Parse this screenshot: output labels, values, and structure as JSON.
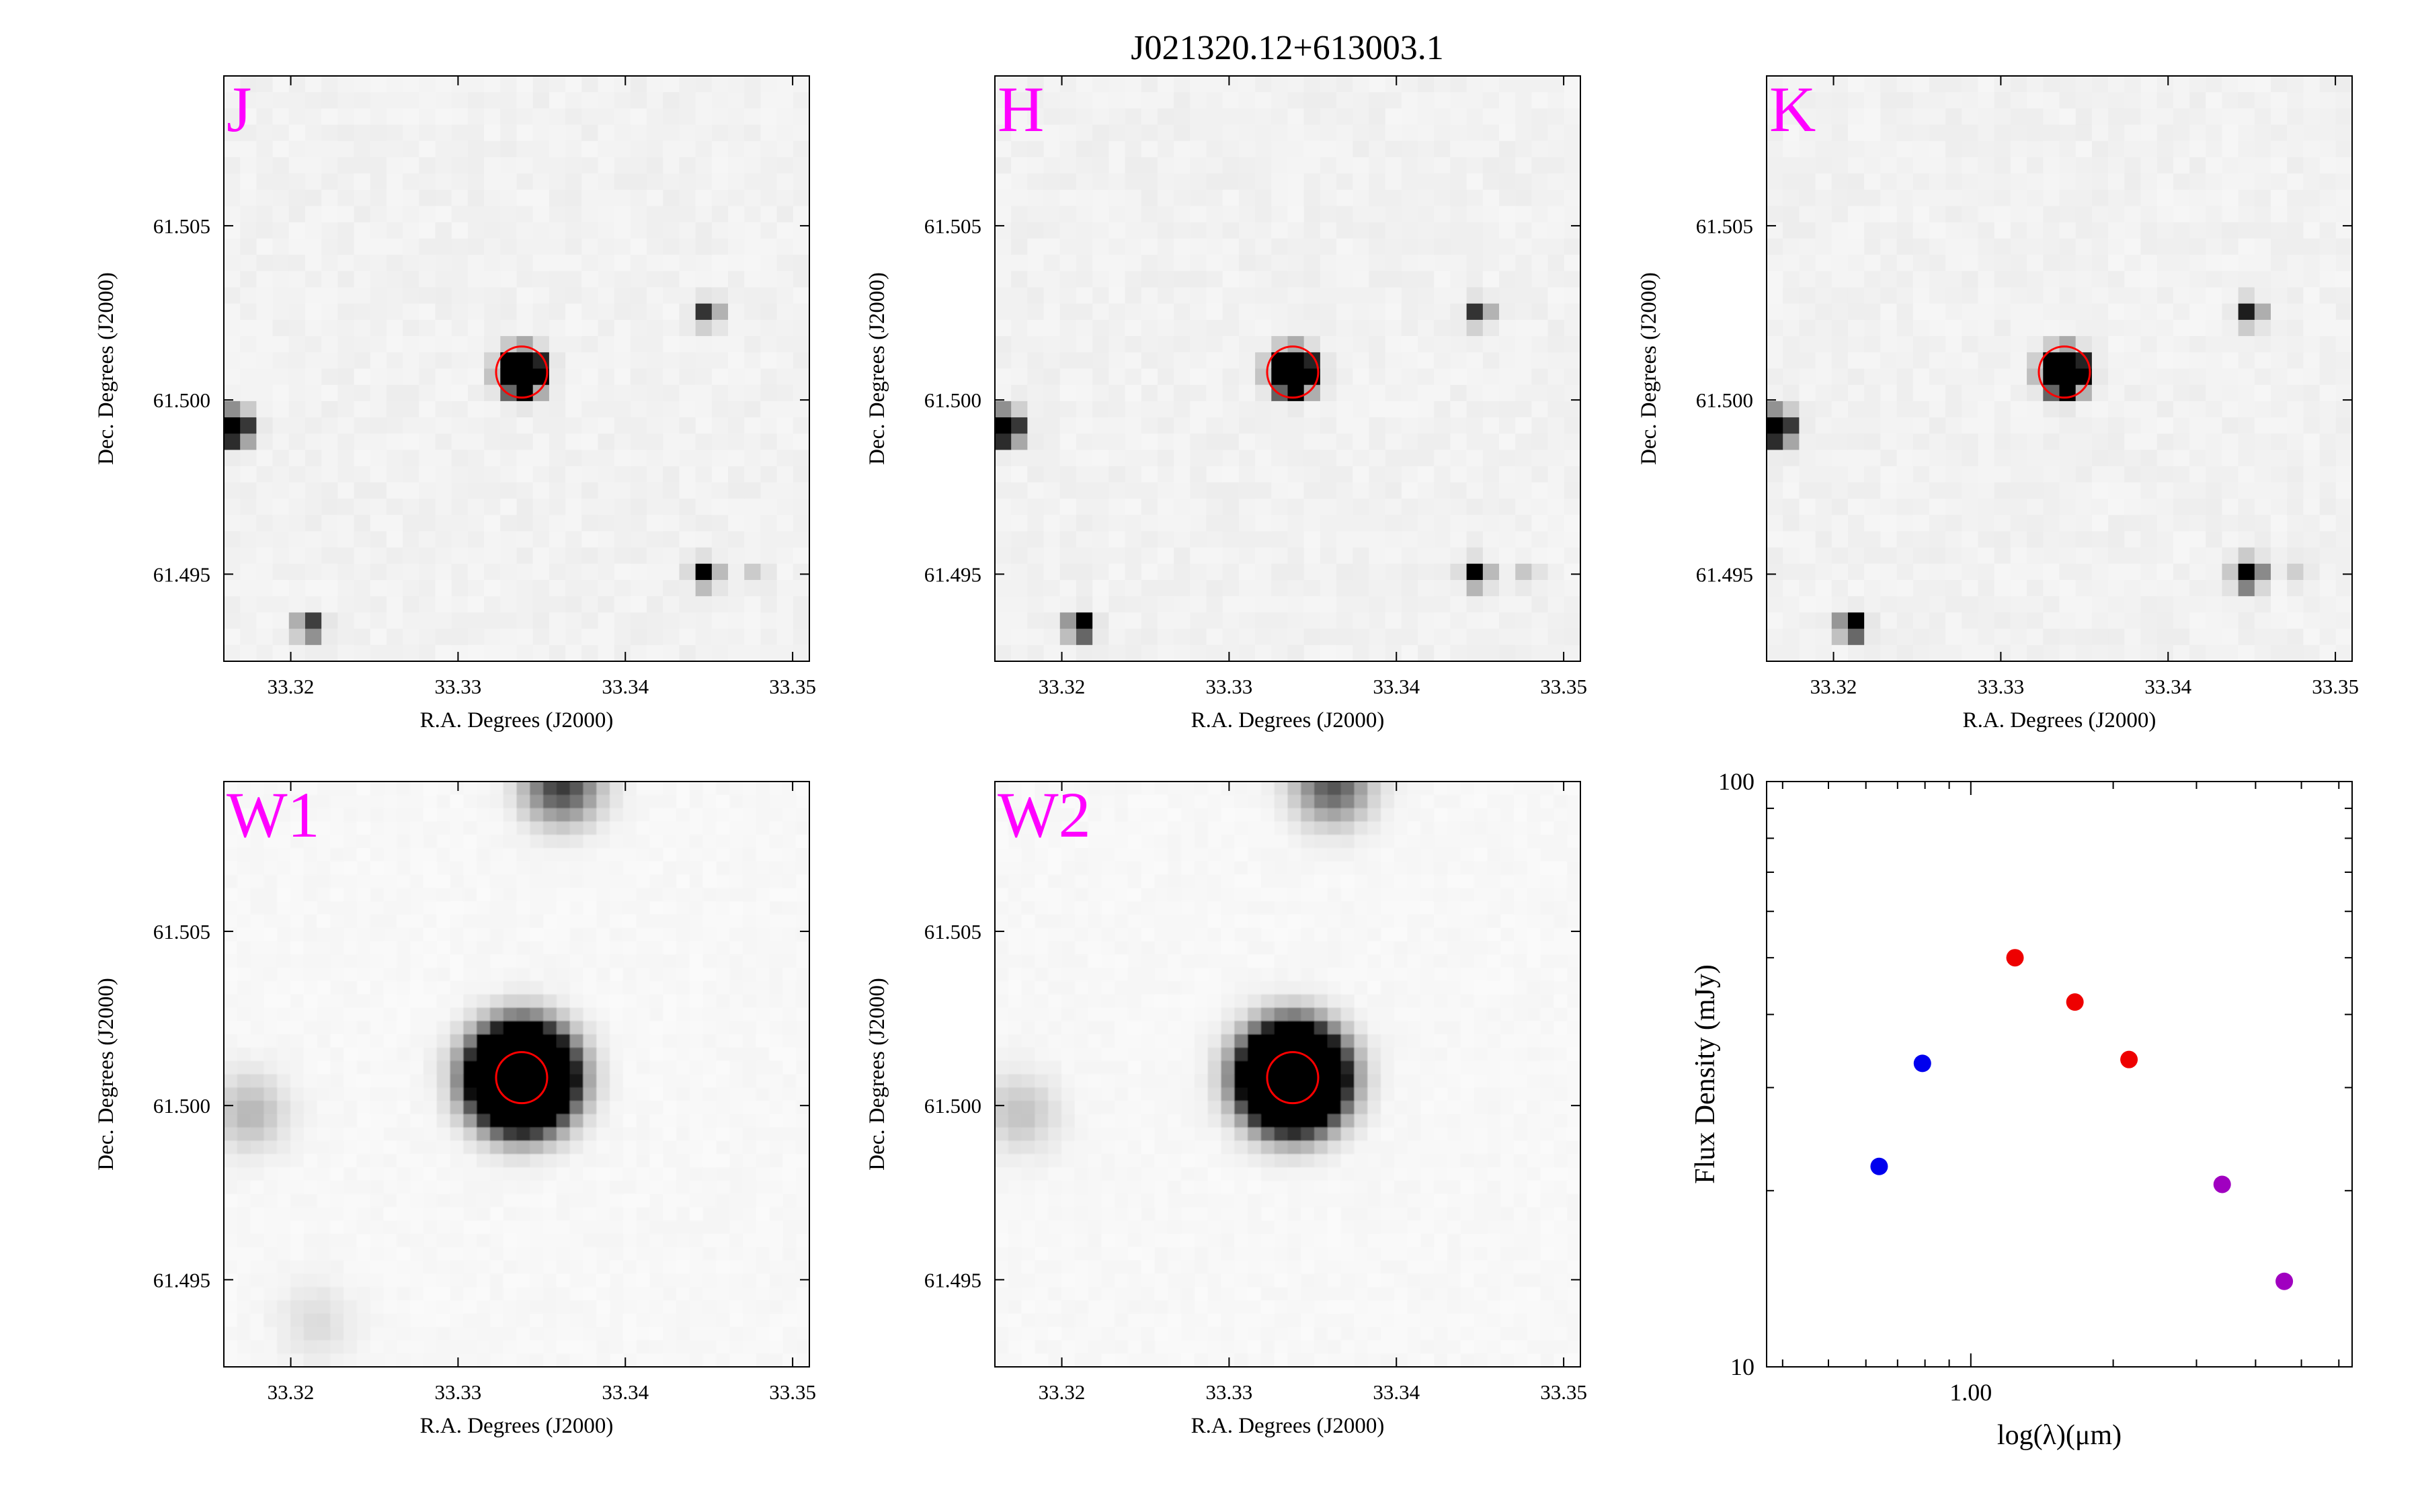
{
  "title": "J021320.12+613003.1",
  "image_panel": {
    "xlabel": "R.A. Degrees (J2000)",
    "ylabel": "Dec. Degrees (J2000)",
    "xlim": [
      33.316,
      33.351
    ],
    "ylim": [
      61.4925,
      61.5093
    ],
    "xticks": [
      "33.32",
      "33.33",
      "33.34",
      "33.35"
    ],
    "yticks": [
      "61.495",
      "61.500",
      "61.505"
    ],
    "target": {
      "ra": 33.3338,
      "dec": 61.5008
    },
    "marker_color": "#ff0000",
    "band_label_color": "#ff00ff"
  },
  "panels": [
    {
      "band": "J",
      "type": "2mass",
      "sources": [
        {
          "ra": 33.3338,
          "dec": 61.5008,
          "strength": 1.0,
          "size": 1.0
        },
        {
          "ra": 33.3166,
          "dec": 61.4992,
          "strength": 0.95,
          "size": 0.9
        },
        {
          "ra": 33.3449,
          "dec": 61.5025,
          "strength": 0.4,
          "size": 0.7
        },
        {
          "ra": 33.3448,
          "dec": 61.495,
          "strength": 0.5,
          "size": 0.7
        },
        {
          "ra": 33.3211,
          "dec": 61.4935,
          "strength": 0.5,
          "size": 0.7
        },
        {
          "ra": 33.3478,
          "dec": 61.495,
          "strength": 0.08,
          "size": 0.7
        }
      ]
    },
    {
      "band": "H",
      "type": "2mass",
      "sources": [
        {
          "ra": 33.3338,
          "dec": 61.5008,
          "strength": 1.0,
          "size": 1.0
        },
        {
          "ra": 33.3166,
          "dec": 61.4992,
          "strength": 0.95,
          "size": 0.9
        },
        {
          "ra": 33.3449,
          "dec": 61.5025,
          "strength": 0.4,
          "size": 0.7
        },
        {
          "ra": 33.3448,
          "dec": 61.495,
          "strength": 0.55,
          "size": 0.7
        },
        {
          "ra": 33.3211,
          "dec": 61.4935,
          "strength": 0.7,
          "size": 0.7
        },
        {
          "ra": 33.3478,
          "dec": 61.495,
          "strength": 0.1,
          "size": 0.7
        }
      ]
    },
    {
      "band": "K",
      "type": "2mass",
      "sources": [
        {
          "ra": 33.3338,
          "dec": 61.5008,
          "strength": 1.0,
          "size": 1.0
        },
        {
          "ra": 33.3166,
          "dec": 61.4992,
          "strength": 0.95,
          "size": 0.9
        },
        {
          "ra": 33.3449,
          "dec": 61.5025,
          "strength": 0.45,
          "size": 0.7
        },
        {
          "ra": 33.3448,
          "dec": 61.495,
          "strength": 0.8,
          "size": 0.75
        },
        {
          "ra": 33.3211,
          "dec": 61.4935,
          "strength": 0.7,
          "size": 0.7
        },
        {
          "ra": 33.3478,
          "dec": 61.495,
          "strength": 0.08,
          "size": 0.7
        }
      ]
    },
    {
      "band": "W1",
      "type": "wise",
      "sources": [
        {
          "ra": 33.3338,
          "dec": 61.5008,
          "strength": 1.0,
          "size": 1.0
        },
        {
          "ra": 33.3362,
          "dec": 61.5092,
          "strength": 0.35,
          "size": 0.9
        },
        {
          "ra": 33.3175,
          "dec": 61.4998,
          "strength": 0.12,
          "size": 0.9
        },
        {
          "ra": 33.3215,
          "dec": 61.4938,
          "strength": 0.05,
          "size": 0.9
        }
      ]
    },
    {
      "band": "W2",
      "type": "wise",
      "sources": [
        {
          "ra": 33.3338,
          "dec": 61.5008,
          "strength": 1.0,
          "size": 1.0
        },
        {
          "ra": 33.3362,
          "dec": 61.5092,
          "strength": 0.3,
          "size": 0.9
        },
        {
          "ra": 33.3175,
          "dec": 61.4998,
          "strength": 0.1,
          "size": 0.9
        }
      ]
    }
  ],
  "chart_data": {
    "type": "scatter",
    "xlabel": "log(λ)(μm)",
    "ylabel": "Flux Density (mJy)",
    "xscale": "log",
    "yscale": "log",
    "xlim": [
      0.37,
      6.4
    ],
    "ylim": [
      10,
      100
    ],
    "xticklabels": [
      {
        "value": 1.0,
        "label": "1.00"
      }
    ],
    "yticklabels": [
      {
        "value": 10,
        "label": "10"
      },
      {
        "value": 100,
        "label": "100"
      }
    ],
    "grid": false,
    "points": [
      {
        "x": 0.64,
        "y": 22.0,
        "color": "#0000ee"
      },
      {
        "x": 0.79,
        "y": 33.0,
        "color": "#0000ee"
      },
      {
        "x": 1.24,
        "y": 50.0,
        "color": "#ee0000"
      },
      {
        "x": 1.66,
        "y": 42.0,
        "color": "#ee0000"
      },
      {
        "x": 2.16,
        "y": 33.5,
        "color": "#ee0000"
      },
      {
        "x": 3.4,
        "y": 20.5,
        "color": "#a000c0"
      },
      {
        "x": 4.6,
        "y": 14.0,
        "color": "#a000c0"
      }
    ]
  }
}
